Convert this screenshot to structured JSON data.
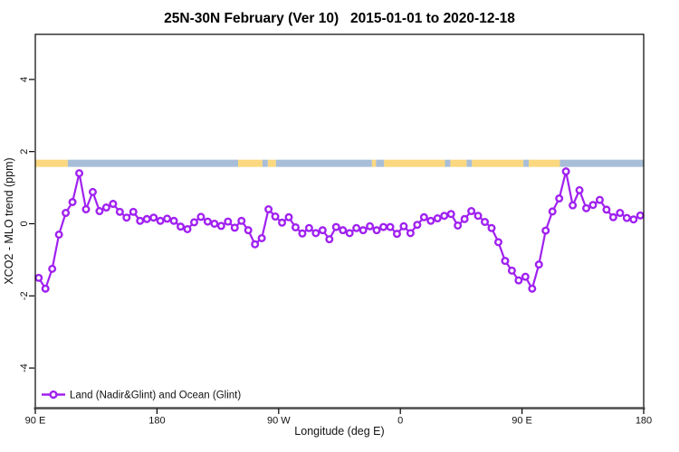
{
  "header": {
    "title": "25N-30N February (Ver 10)   2015-01-01 to 2020-12-18"
  },
  "chart_data": {
    "type": "line",
    "title": "25N-30N February (Ver 10)  2015-01-01 to 2020-12-18",
    "xlabel": "Longitude (deg E)",
    "ylabel": "XCO2 - MLO trend (ppm)",
    "xlim": [
      90,
      540
    ],
    "ylim": [
      -5.1,
      5.25
    ],
    "grid": false,
    "x_ticks": [
      {
        "lon": 90,
        "label": "90 E"
      },
      {
        "lon": 180,
        "label": "180"
      },
      {
        "lon": 270,
        "label": "90 W"
      },
      {
        "lon": 360,
        "label": "0"
      },
      {
        "lon": 450,
        "label": "90 E"
      },
      {
        "lon": 540,
        "label": "180"
      }
    ],
    "y_ticks": [
      {
        "value": 4,
        "label": "4"
      },
      {
        "value": 2,
        "label": "2"
      },
      {
        "value": 0,
        "label": "0"
      },
      {
        "value": -2,
        "label": "-2"
      },
      {
        "value": -4,
        "label": "-4"
      }
    ],
    "legend": {
      "label": "Land (Nadir&Glint) and Ocean (Glint)",
      "position": "bottom-left"
    },
    "series": [
      {
        "name": "Land (Nadir&Glint) and Ocean (Glint)",
        "color": "#A021F0",
        "marker": "open-circle",
        "marker_fill": "#FFFFFF",
        "x": [
          92.5,
          97.5,
          102.5,
          107.5,
          112.5,
          117.5,
          122.5,
          127.5,
          132.5,
          137.5,
          142.5,
          147.5,
          152.5,
          157.5,
          162.5,
          167.5,
          172.5,
          177.5,
          182.5,
          187.5,
          192.5,
          197.5,
          202.5,
          207.5,
          212.5,
          217.5,
          222.5,
          227.5,
          232.5,
          237.5,
          242.5,
          247.5,
          252.5,
          257.5,
          262.5,
          267.5,
          272.5,
          277.5,
          282.5,
          287.5,
          292.5,
          297.5,
          302.5,
          307.5,
          312.5,
          317.5,
          322.5,
          327.5,
          332.5,
          337.5,
          342.5,
          347.5,
          352.5,
          357.5,
          362.5,
          367.5,
          372.5,
          377.5,
          382.5,
          387.5,
          392.5,
          397.5,
          402.5,
          407.5,
          412.5,
          417.5,
          422.5,
          427.5,
          432.5,
          437.5,
          442.5,
          447.5,
          452.5,
          457.5,
          462.5,
          467.5,
          472.5,
          477.5,
          482.5,
          487.5,
          492.5,
          497.5,
          502.5,
          507.5,
          512.5,
          517.5,
          522.5,
          527.5,
          532.5,
          537.5
        ],
        "values": [
          -1.5,
          -1.8,
          -1.25,
          -0.3,
          0.3,
          0.6,
          1.4,
          0.4,
          0.88,
          0.35,
          0.45,
          0.55,
          0.33,
          0.17,
          0.33,
          0.08,
          0.13,
          0.17,
          0.08,
          0.14,
          0.08,
          -0.08,
          -0.15,
          0.04,
          0.19,
          0.06,
          0.0,
          -0.06,
          0.06,
          -0.11,
          0.08,
          -0.18,
          -0.57,
          -0.4,
          0.4,
          0.2,
          0.03,
          0.18,
          -0.1,
          -0.27,
          -0.12,
          -0.26,
          -0.18,
          -0.43,
          -0.09,
          -0.18,
          -0.26,
          -0.12,
          -0.18,
          -0.07,
          -0.18,
          -0.09,
          -0.09,
          -0.28,
          -0.07,
          -0.26,
          -0.03,
          0.18,
          0.08,
          0.15,
          0.22,
          0.27,
          -0.05,
          0.13,
          0.35,
          0.22,
          0.05,
          -0.12,
          -0.51,
          -1.03,
          -1.3,
          -1.57,
          -1.47,
          -1.8,
          -1.13,
          -0.19,
          0.34,
          0.7,
          1.45,
          0.51,
          0.93,
          0.43,
          0.52,
          0.66,
          0.39,
          0.18,
          0.3,
          0.16,
          0.12,
          0.23
        ]
      }
    ],
    "surface_type_band": {
      "value_from": 1.575,
      "value_to": 1.775,
      "land_color": "#FBD87F",
      "ocean_color": "#A8BED8",
      "segments": [
        {
          "from": 90,
          "to": 114,
          "type": "land"
        },
        {
          "from": 114,
          "to": 240,
          "type": "ocean"
        },
        {
          "from": 240,
          "to": 258,
          "type": "land"
        },
        {
          "from": 258,
          "to": 262,
          "type": "ocean"
        },
        {
          "from": 262,
          "to": 268,
          "type": "land"
        },
        {
          "from": 268,
          "to": 339,
          "type": "ocean"
        },
        {
          "from": 339,
          "to": 342,
          "type": "land"
        },
        {
          "from": 342,
          "to": 348,
          "type": "ocean"
        },
        {
          "from": 348,
          "to": 393,
          "type": "land"
        },
        {
          "from": 393,
          "to": 397,
          "type": "ocean"
        },
        {
          "from": 397,
          "to": 409,
          "type": "land"
        },
        {
          "from": 409,
          "to": 413,
          "type": "ocean"
        },
        {
          "from": 413,
          "to": 451,
          "type": "land"
        },
        {
          "from": 451,
          "to": 455,
          "type": "ocean"
        },
        {
          "from": 455,
          "to": 478,
          "type": "land"
        },
        {
          "from": 478,
          "to": 540,
          "type": "ocean"
        }
      ]
    }
  },
  "colors": {
    "series": "#A021F0",
    "marker_fill": "#FFFFFF",
    "land": "#FBD87F",
    "ocean": "#A8BED8",
    "axis": "#000000",
    "baseline": "#4A4A4A",
    "background": "#FFFFFF",
    "text": "#000000"
  }
}
